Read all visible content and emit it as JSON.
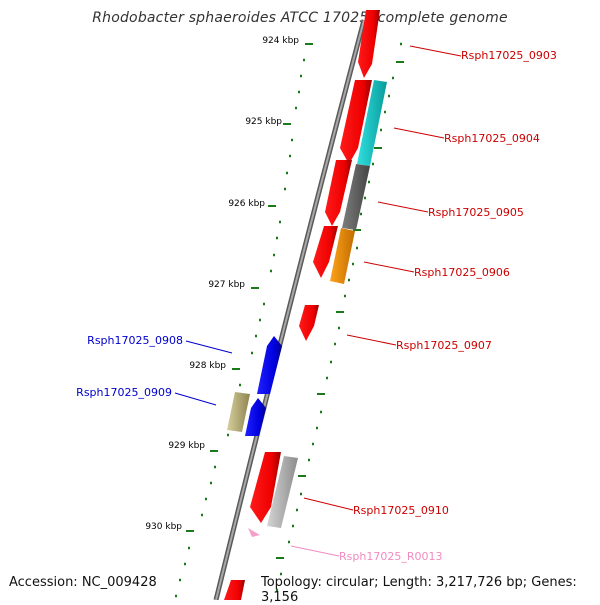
{
  "title": "Rhodobacter sphaeroides ATCC 17025, complete genome",
  "footer": {
    "accession": "Accession: NC_009428",
    "topology": "Topology: circular; Length: 3,217,726 bp; Genes: 3,156"
  },
  "ruler_ticks": [
    "924 kbp",
    "925 kbp",
    "926 kbp",
    "927 kbp",
    "928 kbp",
    "929 kbp",
    "930 kbp"
  ],
  "gene_labels": [
    {
      "id": "Rsph17025_0903",
      "strand": "forward",
      "color": "#cc0000"
    },
    {
      "id": "Rsph17025_0904",
      "strand": "forward",
      "color": "#cc0000"
    },
    {
      "id": "Rsph17025_0905",
      "strand": "forward",
      "color": "#cc0000"
    },
    {
      "id": "Rsph17025_0906",
      "strand": "forward",
      "color": "#cc0000"
    },
    {
      "id": "Rsph17025_0907",
      "strand": "forward",
      "color": "#cc0000"
    },
    {
      "id": "Rsph17025_0908",
      "strand": "reverse",
      "color": "#0000cc"
    },
    {
      "id": "Rsph17025_0909",
      "strand": "reverse",
      "color": "#0000cc"
    },
    {
      "id": "Rsph17025_0910",
      "strand": "forward",
      "color": "#cc0000"
    },
    {
      "id": "Rsph17025_R0013",
      "strand": "forward",
      "color": "#f08cc0"
    }
  ],
  "colors": {
    "forward_cds": "#ff0000",
    "reverse_cds": "#0000ee",
    "backbone": "#8a8a8a",
    "ruler": "#1a7a1a",
    "cyan_feature": "#19d2d2",
    "dark_gray_feature": "#6e6e6e",
    "orange_feature": "#ff9400",
    "olive_feature": "#c8c088",
    "light_gray_feature": "#bdbdbd",
    "rna": "#f5a0c8"
  }
}
